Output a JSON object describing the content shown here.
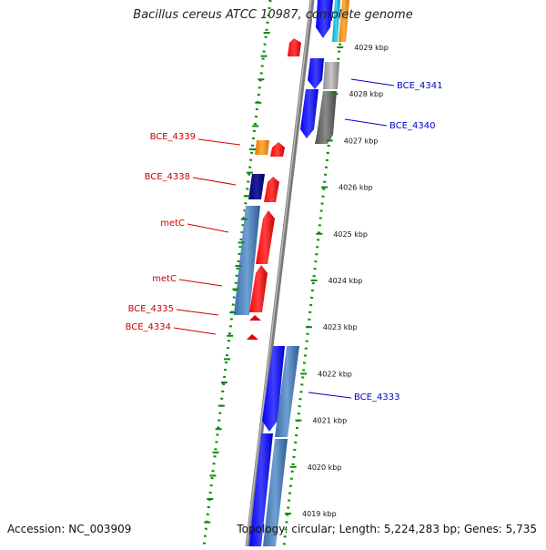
{
  "title": "Bacillus cereus ATCC 10987, complete genome",
  "footer": {
    "accession": "Accession: NC_003909",
    "summary": "Topology: circular; Length: 5,224,283 bp; Genes: 5,735"
  },
  "ticks": [
    "4029 kbp",
    "4028 kbp",
    "4027 kbp",
    "4026 kbp",
    "4025 kbp",
    "4024 kbp",
    "4023 kbp",
    "4022 kbp",
    "4021 kbp",
    "4020 kbp",
    "4019 kbp"
  ],
  "gene_labels_left": [
    "BCE_4339",
    "BCE_4338",
    "metC",
    "metC",
    "BCE_4335",
    "BCE_4334"
  ],
  "gene_labels_right": [
    "BCE_4341",
    "BCE_4340",
    "BCE_4333"
  ],
  "colors": {
    "forward_cds": "#ff0000",
    "reverse_cds": "#0000ff",
    "left_label": "#cc0000",
    "right_label": "#0000cc",
    "backbone": "#808080",
    "dotted_track": "#0a8a0a",
    "gc_skew_track": "#4682b4",
    "orange_gene": "#ff8c00",
    "cyan_gene": "#00bcd4",
    "navy_gene": "#000080",
    "grey_gene": "#a0a0a0"
  }
}
